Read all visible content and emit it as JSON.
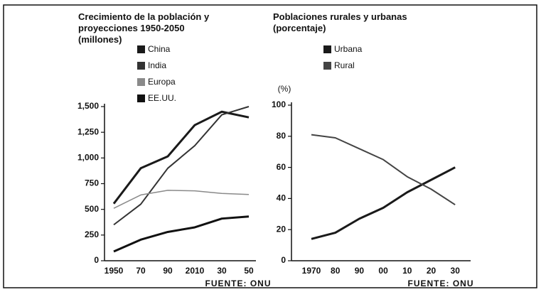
{
  "chart_data": [
    {
      "type": "line",
      "title": "Crecimiento de la población y proyecciones 1950-2050",
      "subtitle": "(millones)",
      "categories": [
        "1950",
        "70",
        "90",
        "2010",
        "30",
        "50"
      ],
      "series": [
        {
          "name": "China",
          "color": "#1a1a1a",
          "values": [
            555,
            900,
            1015,
            1320,
            1450,
            1395
          ]
        },
        {
          "name": "India",
          "color": "#333333",
          "values": [
            350,
            550,
            900,
            1120,
            1420,
            1500
          ]
        },
        {
          "name": "Europa",
          "color": "#8a8a8a",
          "values": [
            510,
            640,
            685,
            680,
            655,
            645
          ]
        },
        {
          "name": "EE.UU.",
          "color": "#111111",
          "values": [
            90,
            205,
            280,
            325,
            410,
            430
          ]
        }
      ],
      "ylim": [
        0,
        1500
      ],
      "yticks": [
        0,
        250,
        500,
        750,
        {
          "value": 1000,
          "label": "1,000"
        },
        {
          "value": 1250,
          "label": "1,250"
        },
        {
          "value": 1500,
          "label": "1,500"
        }
      ],
      "source": "FUENTE: ONU"
    },
    {
      "type": "line",
      "title": "Poblaciones rurales y urbanas",
      "subtitle": "(porcentaje)",
      "y_label": "(%)",
      "categories": [
        "1970",
        "80",
        "90",
        "00",
        "10",
        "20",
        "30"
      ],
      "series": [
        {
          "name": "Urbana",
          "color": "#1a1a1a",
          "values": [
            14,
            18,
            27,
            34,
            44,
            52,
            60
          ]
        },
        {
          "name": "Rural",
          "color": "#444444",
          "values": [
            81,
            79,
            72,
            65,
            54,
            46,
            36
          ]
        }
      ],
      "ylim": [
        0,
        100
      ],
      "yticks": [
        0,
        20,
        40,
        60,
        80,
        100
      ],
      "source": "FUENTE: ONU"
    }
  ]
}
